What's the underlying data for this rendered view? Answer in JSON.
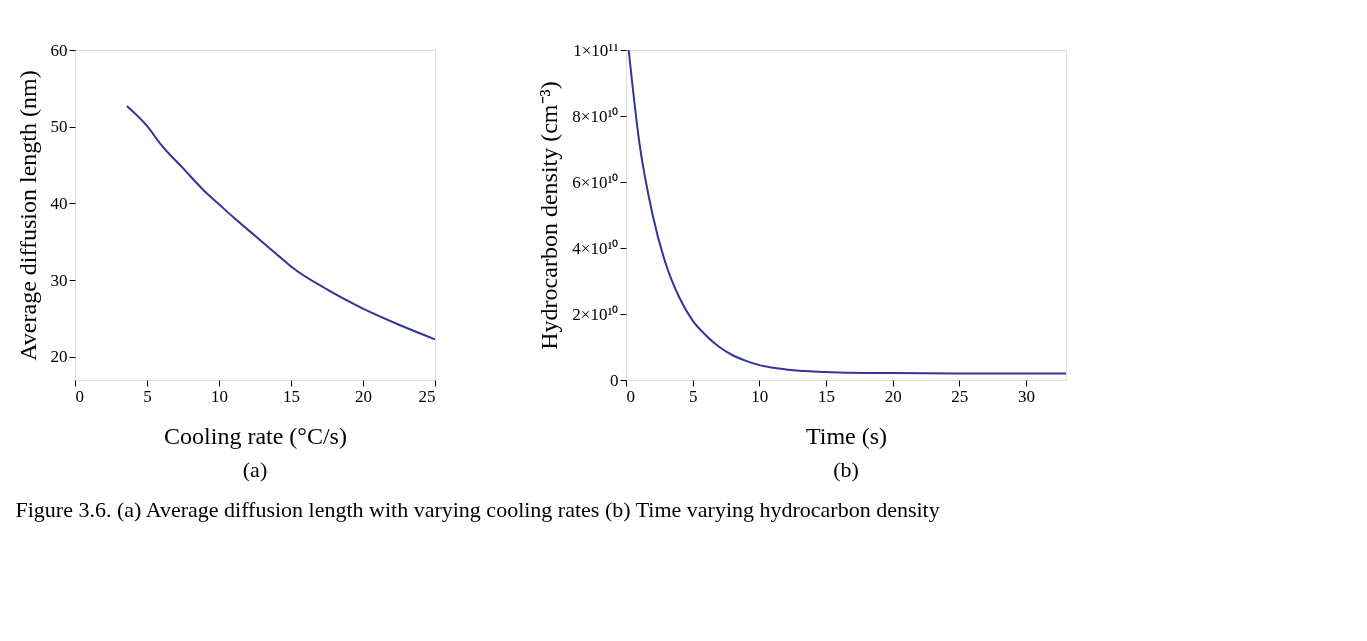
{
  "chart_data": [
    {
      "type": "line",
      "xlabel": "Cooling rate (°C/s)",
      "ylabel": "Average diffusion length (nm)",
      "annotations": [
        "(a)",
        "Figure 3.6. (a) Average diffusion length with varying cooling rates (b) Time varying hydrocarbon density"
      ],
      "x": [
        3.6,
        5,
        6,
        7.5,
        9,
        10,
        11,
        12.5,
        14,
        15,
        17.5,
        20,
        22.5,
        25
      ],
      "series": [
        {
          "color": "#333399",
          "values": [
            52.7,
            50.1,
            47.6,
            44.6,
            41.6,
            39.9,
            38.2,
            35.8,
            33.4,
            31.8,
            28.8,
            26.3,
            24.2,
            22.3
          ]
        }
      ],
      "xlim": [
        0,
        25
      ],
      "xticks": [
        0,
        5,
        10,
        15,
        20,
        25
      ],
      "ylim": [
        17,
        60
      ],
      "yticks": [
        20,
        30,
        40,
        50,
        60
      ],
      "grid": false,
      "marker": "none",
      "line_style": "solid"
    },
    {
      "type": "line",
      "xlabel": "Time (s)",
      "ylabel": "Hydrocarbon density (cm⁻³)",
      "annotations": [
        "(b)"
      ],
      "x": [
        0.2,
        1,
        2,
        3,
        4,
        5,
        6,
        7,
        8,
        9,
        10,
        12,
        14,
        16,
        20,
        25,
        33
      ],
      "series": [
        {
          "color": "#333399",
          "values": [
            100000000000,
            72000000000,
            50000000000,
            35000000000,
            25000000000,
            18000000000,
            13500000000,
            10000000000,
            7500000000,
            5800000000,
            4500000000,
            3200000000,
            2600000000,
            2300000000,
            2100000000,
            2000000000,
            2000000000
          ]
        }
      ],
      "xlim": [
        0,
        33
      ],
      "xticks": [
        0,
        5,
        10,
        15,
        20,
        25,
        30
      ],
      "ylim": [
        0,
        100000000000
      ],
      "yticks": [
        0,
        {
          "value": 20000000000,
          "label": "2×10¹⁰"
        },
        {
          "value": 40000000000,
          "label": "4×10¹⁰"
        },
        {
          "value": 60000000000,
          "label": "6×10¹⁰"
        },
        {
          "value": 80000000000,
          "label": "8×10¹⁰"
        },
        {
          "value": 100000000000,
          "label": "1×10¹¹"
        }
      ],
      "grid": false,
      "marker": "none",
      "line_style": "solid"
    }
  ]
}
